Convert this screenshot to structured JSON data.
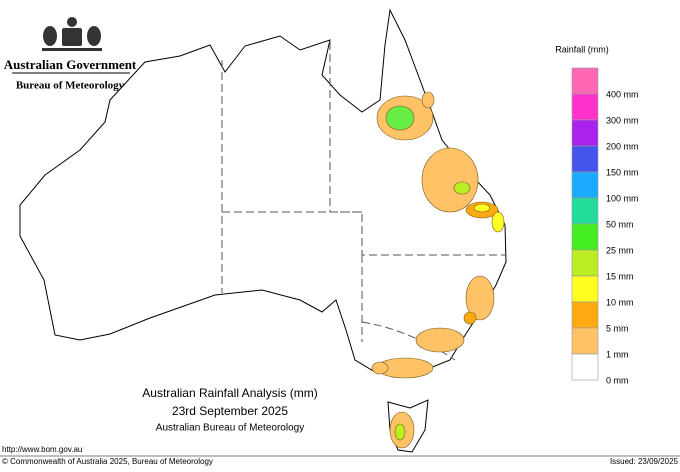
{
  "header": {
    "agency": "Australian Government",
    "bureau": "Bureau of Meteorology"
  },
  "legend": {
    "title": "Rainfall (mm)",
    "items": [
      {
        "label": "400 mm",
        "color": "#ff66b3"
      },
      {
        "label": "300 mm",
        "color": "#ff33cc"
      },
      {
        "label": "200 mm",
        "color": "#aa22ee"
      },
      {
        "label": "150 mm",
        "color": "#4455ee"
      },
      {
        "label": "100 mm",
        "color": "#1aaaff"
      },
      {
        "label": "50 mm",
        "color": "#22dd99"
      },
      {
        "label": "25 mm",
        "color": "#44ee22"
      },
      {
        "label": "15 mm",
        "color": "#bbee22"
      },
      {
        "label": "10 mm",
        "color": "#ffff22"
      },
      {
        "label": "5 mm",
        "color": "#ffaa11"
      },
      {
        "label": "1 mm",
        "color": "#ffc266"
      },
      {
        "label": "0 mm",
        "color": "#ffffff"
      }
    ]
  },
  "title": {
    "line1": "Australian Rainfall Analysis (mm)",
    "line2": "23rd September 2025",
    "line3": "Australian Bureau of Meteorology"
  },
  "footer": {
    "url": "http://www.bom.gov.au",
    "copyright": "© Commonwealth of Australia 2025, Bureau of Meteorology",
    "issued": "Issued: 23/09/2025"
  }
}
